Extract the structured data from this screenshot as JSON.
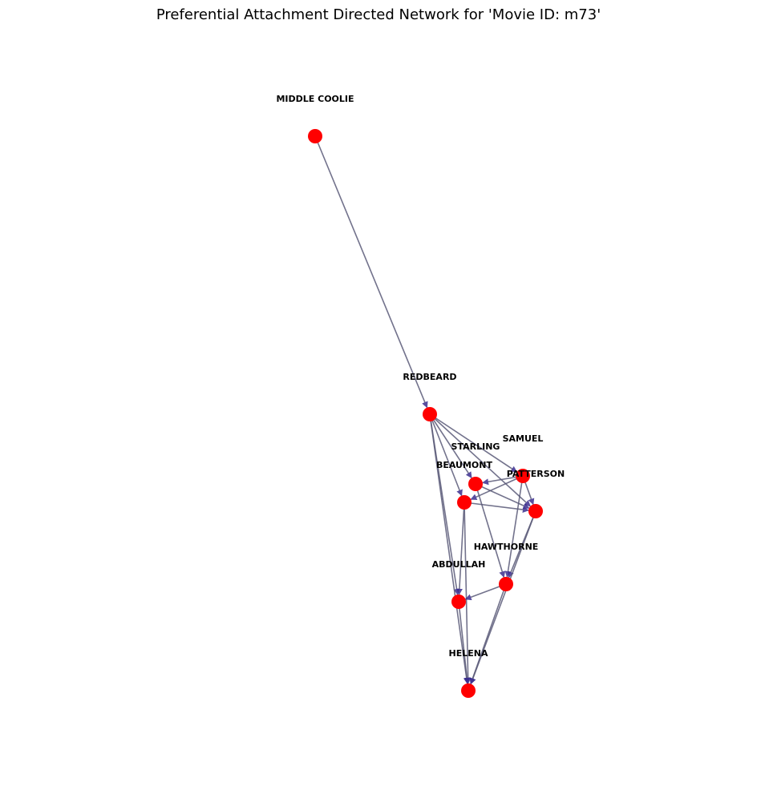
{
  "figure": {
    "title": "Preferential Attachment Directed Network for 'Movie ID: m73'"
  },
  "colors": {
    "node": "#ff0000",
    "edge": "#5a5a78",
    "arrow": "#3b2f8f"
  },
  "nodes": [
    {
      "id": "middle-coolie",
      "label": "MIDDLE COOLIE"
    },
    {
      "id": "redbeard",
      "label": "REDBEARD"
    },
    {
      "id": "samuel",
      "label": "SAMUEL"
    },
    {
      "id": "starling",
      "label": "STARLING"
    },
    {
      "id": "beaumont",
      "label": "BEAUMONT"
    },
    {
      "id": "patterson",
      "label": "PATTERSON"
    },
    {
      "id": "hawthorne",
      "label": "HAWTHORNE"
    },
    {
      "id": "abdullah",
      "label": "ABDULLAH"
    },
    {
      "id": "helena",
      "label": "HELENA"
    }
  ],
  "edges": [
    {
      "source": "middle-coolie",
      "target": "redbeard"
    },
    {
      "source": "redbeard",
      "target": "samuel"
    },
    {
      "source": "redbeard",
      "target": "starling"
    },
    {
      "source": "redbeard",
      "target": "beaumont"
    },
    {
      "source": "redbeard",
      "target": "patterson"
    },
    {
      "source": "redbeard",
      "target": "abdullah"
    },
    {
      "source": "redbeard",
      "target": "helena"
    },
    {
      "source": "samuel",
      "target": "starling"
    },
    {
      "source": "samuel",
      "target": "beaumont"
    },
    {
      "source": "samuel",
      "target": "patterson"
    },
    {
      "source": "samuel",
      "target": "hawthorne"
    },
    {
      "source": "starling",
      "target": "patterson"
    },
    {
      "source": "starling",
      "target": "hawthorne"
    },
    {
      "source": "beaumont",
      "target": "patterson"
    },
    {
      "source": "beaumont",
      "target": "abdullah"
    },
    {
      "source": "beaumont",
      "target": "helena"
    },
    {
      "source": "patterson",
      "target": "hawthorne"
    },
    {
      "source": "patterson",
      "target": "helena"
    },
    {
      "source": "hawthorne",
      "target": "abdullah"
    },
    {
      "source": "hawthorne",
      "target": "helena"
    },
    {
      "source": "abdullah",
      "target": "helena"
    }
  ]
}
